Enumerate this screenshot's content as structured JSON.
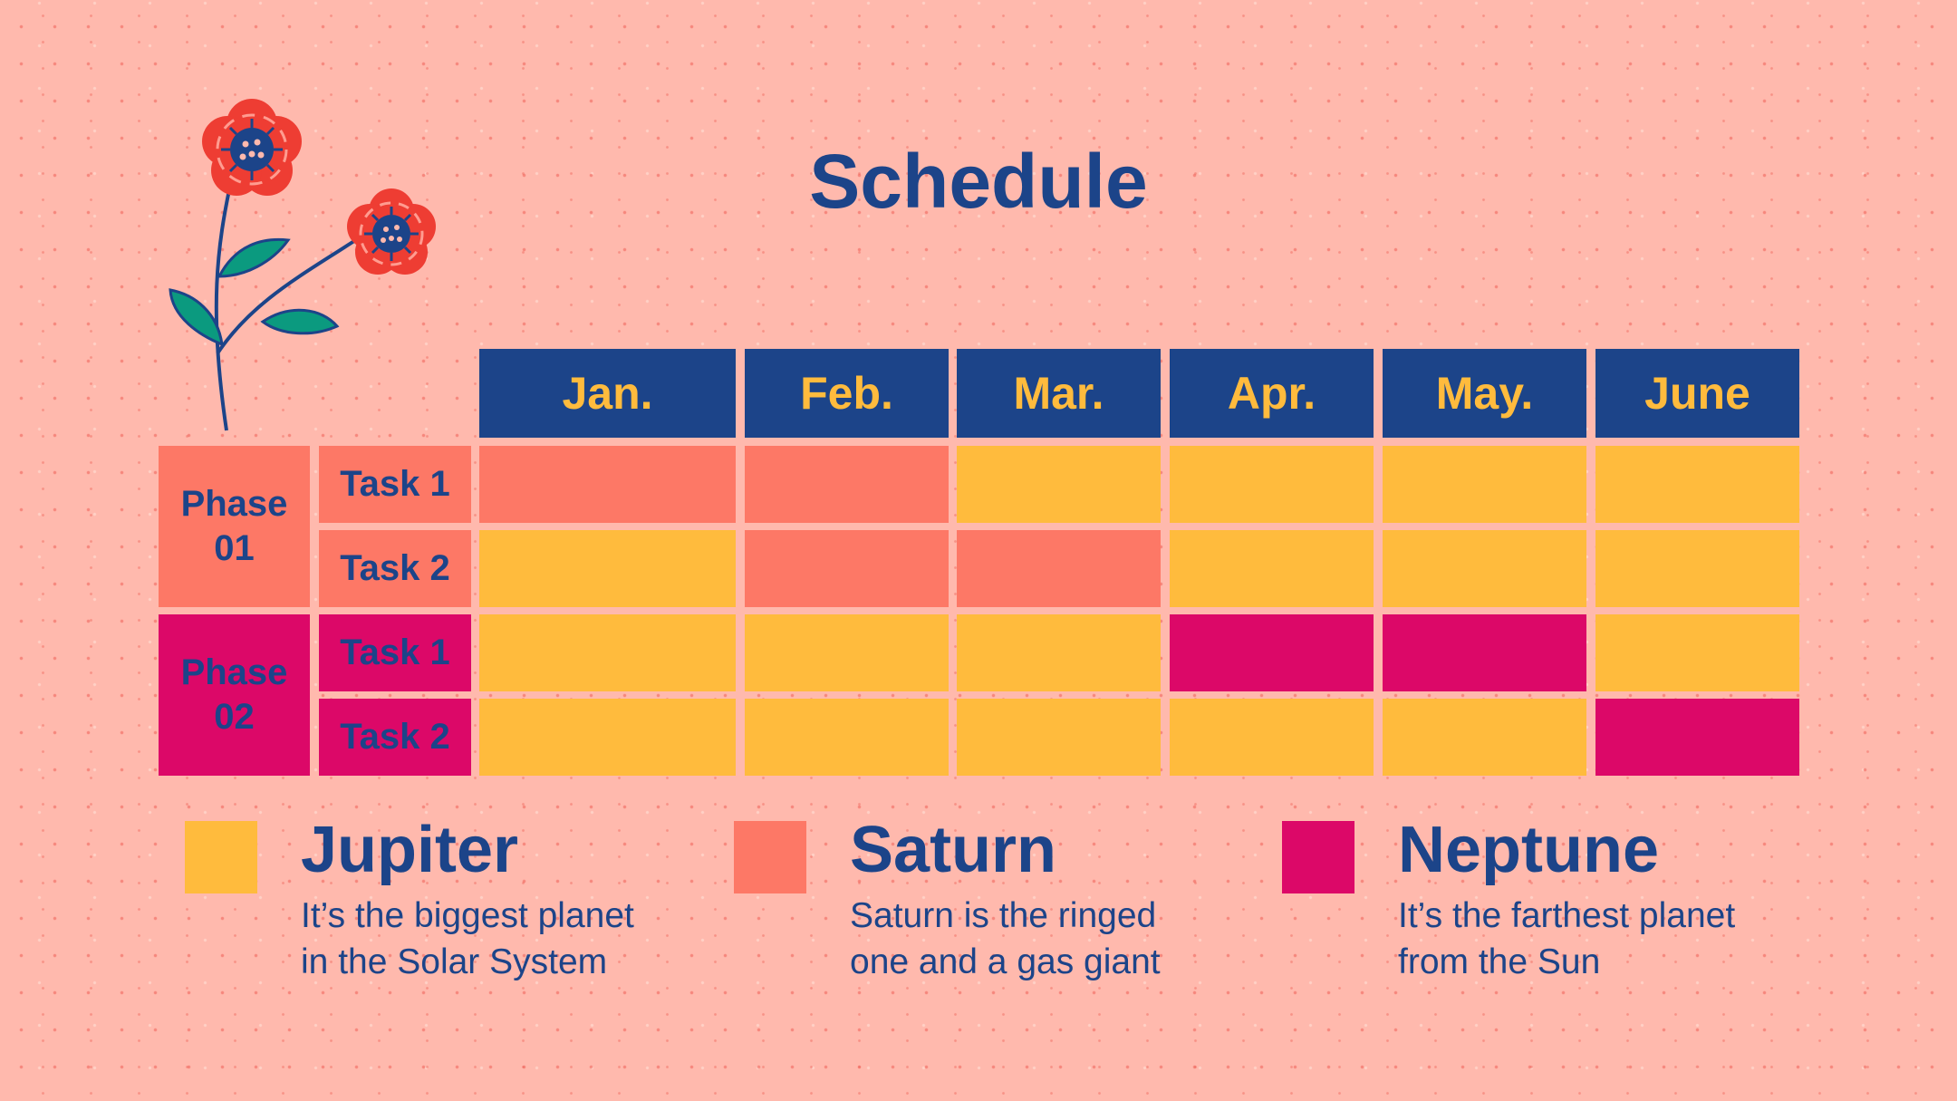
{
  "title": "Schedule",
  "months": [
    "Jan.",
    "Feb.",
    "Mar.",
    "Apr.",
    "May.",
    "June"
  ],
  "phases": [
    {
      "name_line1": "Phase",
      "name_line2": "01",
      "color": "#fd7866",
      "text_color": "#1c4489",
      "tasks": [
        {
          "label": "Task 1",
          "cells": [
            "saturn",
            "saturn",
            "jupiter",
            "jupiter",
            "jupiter",
            "jupiter"
          ]
        },
        {
          "label": "Task 2",
          "cells": [
            "jupiter",
            "saturn",
            "saturn",
            "jupiter",
            "jupiter",
            "jupiter"
          ]
        }
      ]
    },
    {
      "name_line1": "Phase",
      "name_line2": "02",
      "color": "#dc0868",
      "text_color": "#1c4489",
      "tasks": [
        {
          "label": "Task 1",
          "cells": [
            "jupiter",
            "jupiter",
            "jupiter",
            "neptune",
            "neptune",
            "jupiter"
          ]
        },
        {
          "label": "Task 2",
          "cells": [
            "jupiter",
            "jupiter",
            "jupiter",
            "jupiter",
            "jupiter",
            "neptune"
          ]
        }
      ]
    }
  ],
  "colors": {
    "jupiter": "#ffbb3d",
    "saturn": "#fd7866",
    "neptune": "#dc0868",
    "header": "#1c4489",
    "header_text": "#ffbb3d",
    "background": "#ffb9ad"
  },
  "legend": [
    {
      "key": "jupiter",
      "title": "Jupiter",
      "line1": "It’s the biggest planet",
      "line2": "in the Solar System"
    },
    {
      "key": "saturn",
      "title": "Saturn",
      "line1": "Saturn is the ringed",
      "line2": "one and a gas giant"
    },
    {
      "key": "neptune",
      "title": "Neptune",
      "line1": "It’s the farthest planet",
      "line2": "from the Sun"
    }
  ],
  "decoration": {
    "icon": "flower-icon"
  }
}
